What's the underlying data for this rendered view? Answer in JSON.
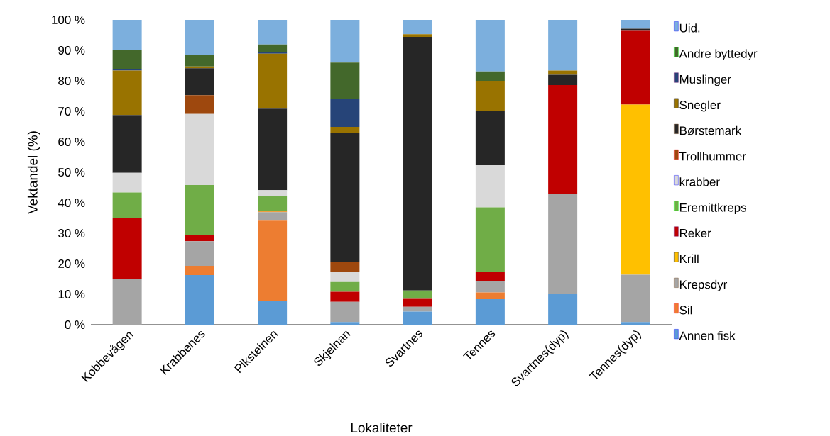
{
  "chart_data": {
    "type": "bar",
    "stacked": true,
    "xlabel": "Lokaliteter",
    "ylabel": "Vektandel (%)",
    "categories": [
      "Kobbevågen",
      "Krabbenes",
      "Piksteinen",
      "Skjelnan",
      "Svartnes",
      "Tennes",
      "Svartnes(dyp)",
      "Tennes(dyp)"
    ],
    "ylim": [
      0,
      100
    ],
    "yticks": [
      {
        "value": 0,
        "label": "0 %"
      },
      {
        "value": 10,
        "label": "10 %"
      },
      {
        "value": 20,
        "label": "20 %"
      },
      {
        "value": 30,
        "label": "30 %"
      },
      {
        "value": 40,
        "label": "40 %"
      },
      {
        "value": 50,
        "label": "50 %"
      },
      {
        "value": 60,
        "label": "60 %"
      },
      {
        "value": 70,
        "label": "70 %"
      },
      {
        "value": 80,
        "label": "80 %"
      },
      {
        "value": 90,
        "label": "90 %"
      },
      {
        "value": 100,
        "label": "100 %"
      }
    ],
    "legend": "right",
    "series": [
      {
        "name": "Annen fisk",
        "color": "#5b9bd5",
        "values": [
          0,
          16.3,
          7.7,
          0.9,
          4.3,
          8.4,
          10.0,
          0.9
        ]
      },
      {
        "name": "Sil",
        "color": "#ed7d31",
        "values": [
          0,
          3.0,
          26.4,
          0,
          0,
          2.2,
          0,
          0
        ]
      },
      {
        "name": "Krepsdyr",
        "color": "#a5a5a5",
        "values": [
          15.0,
          8.1,
          2.8,
          6.6,
          1.6,
          3.7,
          32.9,
          15.5
        ]
      },
      {
        "name": "Krill",
        "color": "#ffc000",
        "values": [
          0,
          0,
          0.2,
          0,
          0,
          0,
          0,
          55.8
        ]
      },
      {
        "name": "Reker",
        "color": "#c00000",
        "values": [
          19.9,
          2.1,
          0.3,
          3.3,
          2.6,
          3.1,
          35.7,
          24.2
        ]
      },
      {
        "name": "Eremittkreps",
        "color": "#70ad47",
        "values": [
          8.5,
          16.3,
          4.8,
          3.2,
          2.7,
          21.1,
          0,
          0
        ]
      },
      {
        "name": "krabber",
        "color": "#d9d9d9",
        "values": [
          6.4,
          23.3,
          1.9,
          3.2,
          0,
          13.8,
          0,
          0
        ]
      },
      {
        "name": "Trollhummer",
        "color": "#9e480e",
        "values": [
          0,
          6.2,
          0,
          3.3,
          0,
          0,
          0,
          0
        ]
      },
      {
        "name": "Børstemark",
        "color": "#262626",
        "values": [
          19.0,
          8.8,
          26.8,
          42.4,
          83.2,
          17.9,
          3.4,
          0.7
        ]
      },
      {
        "name": "Snegler",
        "color": "#997300",
        "values": [
          14.6,
          0.6,
          18.0,
          2.0,
          0.9,
          9.8,
          1.4,
          0
        ]
      },
      {
        "name": "Muslinger",
        "color": "#264478",
        "values": [
          0.5,
          0,
          0.4,
          9.2,
          0,
          0,
          0,
          0
        ]
      },
      {
        "name": "Andre byttedyr",
        "color": "#43682b",
        "values": [
          6.3,
          3.7,
          2.6,
          11.9,
          0,
          3.1,
          0,
          0
        ]
      },
      {
        "name": "Uid.",
        "color": "#7cafdd",
        "values": [
          9.8,
          11.6,
          8.1,
          14.0,
          4.7,
          16.9,
          16.6,
          2.9
        ]
      }
    ]
  }
}
